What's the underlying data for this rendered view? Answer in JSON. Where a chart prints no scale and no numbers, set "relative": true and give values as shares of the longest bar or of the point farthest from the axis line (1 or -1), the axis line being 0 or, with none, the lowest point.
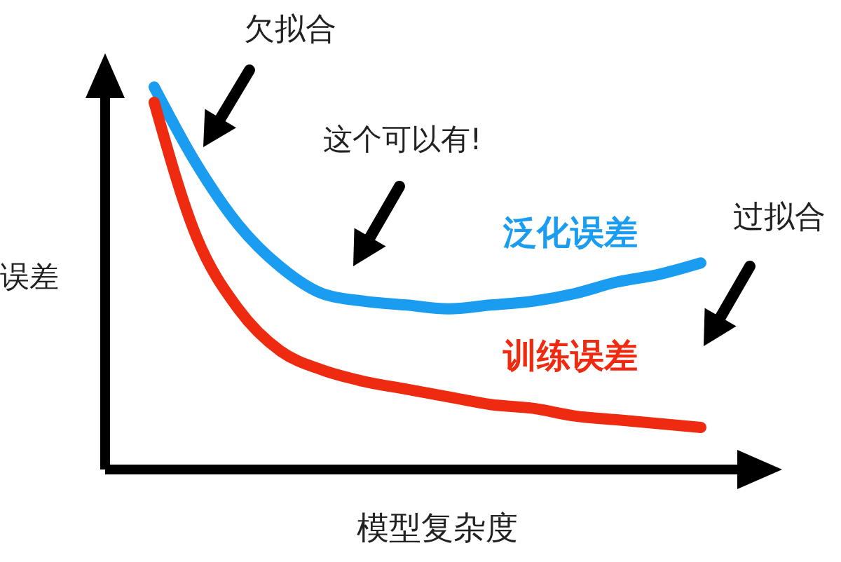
{
  "chart_data": {
    "type": "line",
    "relative": true,
    "xlabel": "模型复杂度",
    "ylabel": "误差",
    "categories": [
      null,
      null,
      null,
      null,
      null,
      null,
      null,
      null,
      null,
      null,
      null,
      null,
      null,
      null
    ],
    "series": [
      {
        "name": "泛化误差",
        "color": "#1a9cf0",
        "values": [
          1,
          0.8,
          0.64,
          0.53,
          0.46,
          0.44,
          0.43,
          0.42,
          0.43,
          0.44,
          0.46,
          0.49,
          0.51,
          0.54
        ]
      },
      {
        "name": "训练误差",
        "color": "#ee2a10",
        "values": [
          0.96,
          0.61,
          0.42,
          0.31,
          0.26,
          0.23,
          0.21,
          0.19,
          0.17,
          0.16,
          0.14,
          0.13,
          0.12,
          0.11
        ]
      }
    ],
    "annotations": [
      "欠拟合",
      "这个可以有!",
      "过拟合"
    ],
    "line_style": "solid"
  }
}
